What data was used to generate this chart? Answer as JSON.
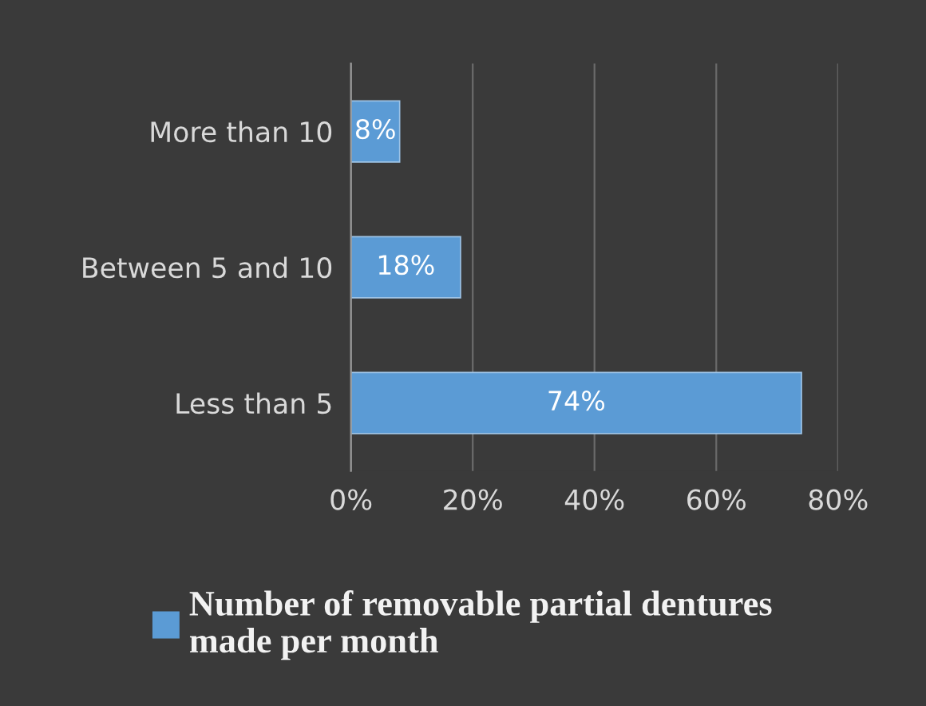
{
  "chart_data": {
    "type": "bar",
    "orientation": "horizontal",
    "categories": [
      "More than 10",
      "Between 5 and 10",
      "Less than 5"
    ],
    "series": [
      {
        "name": "Number of removable partial dentures made per month",
        "color": "#5b9bd5",
        "values": [
          8,
          18,
          74
        ],
        "value_labels": [
          "8%",
          "18%",
          "74%"
        ]
      }
    ],
    "xlim": [
      0,
      80
    ],
    "xticks": [
      {
        "value": 0,
        "label": "0%"
      },
      {
        "value": 20,
        "label": "20%"
      },
      {
        "value": 40,
        "label": "40%"
      },
      {
        "value": 60,
        "label": "60%"
      },
      {
        "value": 80,
        "label": "80%"
      }
    ],
    "grid": "x",
    "legend": "bottom"
  }
}
